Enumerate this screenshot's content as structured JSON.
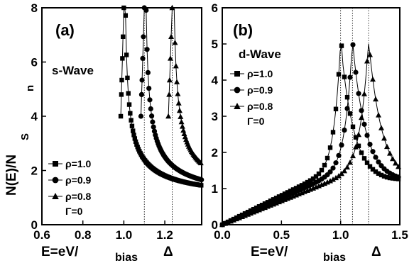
{
  "ylabel": "N(E)/N",
  "ylabel_sub": "S",
  "ylabel_n": "n",
  "xlabel": "E=eV/",
  "xlabel_sub": "bias",
  "xlabel_delta": "Δ",
  "chart_data": [
    {
      "type": "line",
      "panel_label": "(a)",
      "title": "s-Wave",
      "xlim": [
        0.6,
        1.38
      ],
      "ylim": [
        0,
        8
      ],
      "xticks": [
        "0.6",
        "0.8",
        "1.0",
        "1.2"
      ],
      "xtick_values": [
        0.6,
        0.8,
        1.0,
        1.2
      ],
      "yticks": [
        "0",
        "2",
        "4",
        "6",
        "8"
      ],
      "ytick_values": [
        0,
        2,
        4,
        6,
        8
      ],
      "vlines": [
        1.1,
        1.236
      ],
      "legend_position": "bottom-left",
      "legend_extra": "Γ=0",
      "series": [
        {
          "name": "ρ=1.0",
          "marker": "square",
          "gap": 1.0,
          "ymax": 8
        },
        {
          "name": "ρ=0.9",
          "marker": "circle",
          "gap": 1.1,
          "ymax": 8
        },
        {
          "name": "ρ=0.8",
          "marker": "triangle",
          "gap": 1.236,
          "ymax": 8
        }
      ]
    },
    {
      "type": "line",
      "panel_label": "(b)",
      "title": "d-Wave",
      "xlim": [
        0,
        1.5
      ],
      "ylim": [
        0,
        6
      ],
      "xticks": [
        "0.0",
        "0.5",
        "1.0",
        "1.5"
      ],
      "xtick_values": [
        0,
        0.5,
        1.0,
        1.5
      ],
      "yticks": [
        "0",
        "1",
        "2",
        "3",
        "4",
        "5",
        "6"
      ],
      "ytick_values": [
        0,
        1,
        2,
        3,
        4,
        5,
        6
      ],
      "vlines": [
        1.0,
        1.1,
        1.236
      ],
      "legend_position": "top-left",
      "legend_extra": "Γ=0",
      "series": [
        {
          "name": "ρ=1.0",
          "marker": "square",
          "gap": 1.0,
          "peak": 5.05
        },
        {
          "name": "ρ=0.9",
          "marker": "circle",
          "gap": 1.1,
          "peak": 5.08
        },
        {
          "name": "ρ=0.8",
          "marker": "triangle",
          "gap": 1.236,
          "peak": 5.1
        }
      ]
    }
  ]
}
